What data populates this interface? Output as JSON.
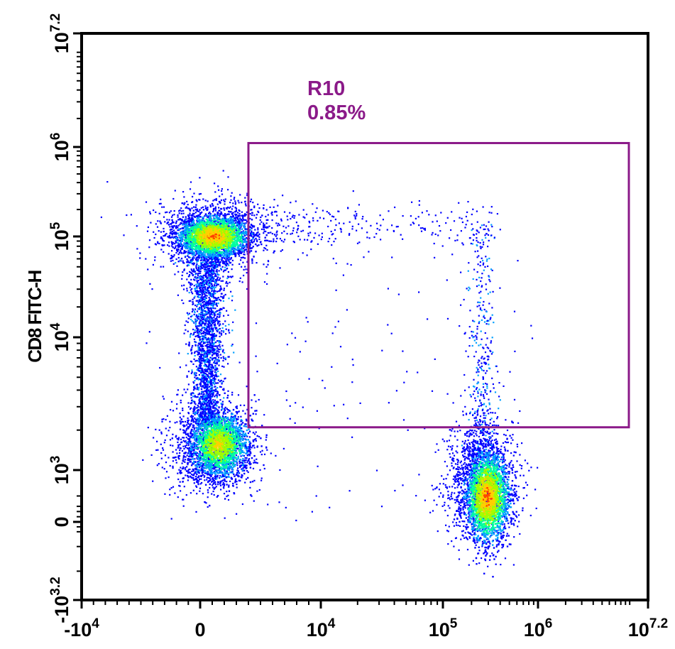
{
  "chart_data": {
    "type": "scatter",
    "title": "",
    "xlabel": "",
    "ylabel": "CD8 FITC-H",
    "x_scale": "biexponential",
    "y_scale": "biexponential",
    "xlim": [
      -10000,
      15848932
    ],
    "ylim": [
      -1585,
      15848932
    ],
    "x_ticks": [
      {
        "label_base": "-10",
        "label_exp": "4",
        "value": -10000
      },
      {
        "label_base": "0",
        "label_exp": "",
        "value": 0
      },
      {
        "label_base": "10",
        "label_exp": "4",
        "value": 10000
      },
      {
        "label_base": "10",
        "label_exp": "5",
        "value": 100000
      },
      {
        "label_base": "10",
        "label_exp": "6",
        "value": 1000000
      },
      {
        "label_base": "10",
        "label_exp": "7.2",
        "value": 15848932
      }
    ],
    "y_ticks": [
      {
        "label_base": "-10",
        "label_exp": "3.2",
        "value": -1585
      },
      {
        "label_base": "0",
        "label_exp": "",
        "value": 0
      },
      {
        "label_base": "10",
        "label_exp": "3",
        "value": 1000
      },
      {
        "label_base": "10",
        "label_exp": "4",
        "value": 10000
      },
      {
        "label_base": "10",
        "label_exp": "5",
        "value": 100000
      },
      {
        "label_base": "10",
        "label_exp": "6",
        "value": 1000000
      },
      {
        "label_base": "10",
        "label_exp": "7.2",
        "value": 15848932
      }
    ],
    "populations": [
      {
        "name": "",
        "x_center": 1000,
        "y_center": 110000,
        "density": "high"
      },
      {
        "name": "",
        "x_center": 800,
        "y_center": 1500,
        "density": "high"
      },
      {
        "name": "",
        "x_center": 250000,
        "y_center": 700,
        "density": "high"
      }
    ],
    "gate": {
      "name": "R10",
      "percent": "0.85%",
      "x_range": [
        4000,
        10000000
      ],
      "y_range": [
        2100,
        1100000
      ],
      "color": "#8B1A89"
    },
    "colormap": [
      "#0000ff",
      "#00a0ff",
      "#00ffa0",
      "#a0ff00",
      "#ffd000",
      "#ff4000"
    ]
  }
}
